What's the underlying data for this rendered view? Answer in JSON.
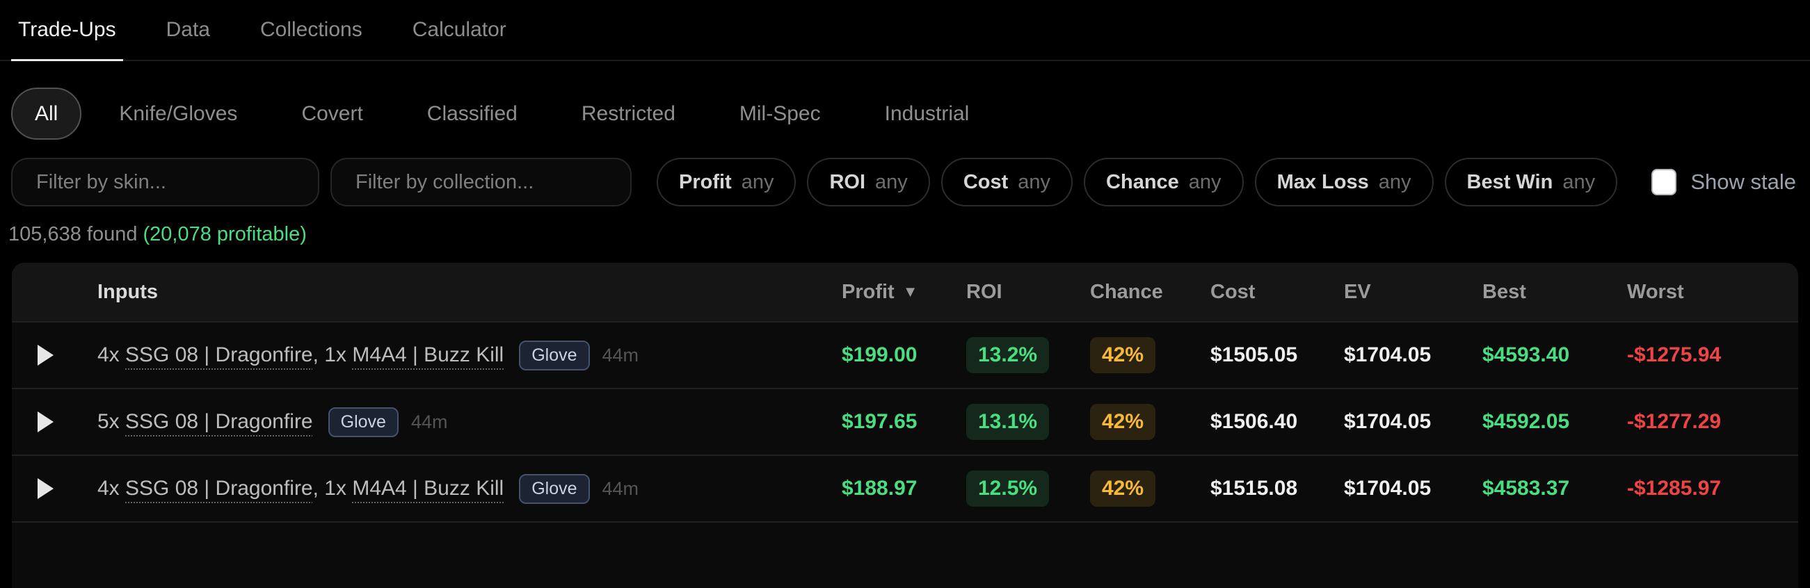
{
  "nav": {
    "tabs": [
      {
        "label": "Trade-Ups",
        "active": true
      },
      {
        "label": "Data",
        "active": false
      },
      {
        "label": "Collections",
        "active": false
      },
      {
        "label": "Calculator",
        "active": false
      }
    ]
  },
  "rarity_filters": {
    "active": "All",
    "options": [
      {
        "label": "All"
      },
      {
        "label": "Knife/Gloves"
      },
      {
        "label": "Covert"
      },
      {
        "label": "Classified"
      },
      {
        "label": "Restricted"
      },
      {
        "label": "Mil-Spec"
      },
      {
        "label": "Industrial"
      }
    ]
  },
  "filters": {
    "skin_placeholder": "Filter by skin...",
    "collection_placeholder": "Filter by collection...",
    "pills": [
      {
        "label": "Profit",
        "value": "any"
      },
      {
        "label": "ROI",
        "value": "any"
      },
      {
        "label": "Cost",
        "value": "any"
      },
      {
        "label": "Chance",
        "value": "any"
      },
      {
        "label": "Max Loss",
        "value": "any"
      },
      {
        "label": "Best Win",
        "value": "any"
      }
    ],
    "show_stale_label": "Show stale",
    "show_stale_checked": false
  },
  "results_summary": {
    "found_text": "105,638 found ",
    "profitable_text": "(20,078 profitable)"
  },
  "table": {
    "headers": {
      "inputs": "Inputs",
      "profit": "Profit",
      "sort_arrow": "▼",
      "roi": "ROI",
      "chance": "Chance",
      "cost": "Cost",
      "ev": "EV",
      "best": "Best",
      "worst": "Worst"
    },
    "rows": [
      {
        "inputs": [
          {
            "t": "4x ",
            "u": false
          },
          {
            "t": "SSG 08 | Dragonfire",
            "u": true
          },
          {
            "t": ", 1x ",
            "u": false
          },
          {
            "t": "M4A4 | Buzz Kill",
            "u": true
          }
        ],
        "badge": "Glove",
        "age": "44m",
        "profit": "$199.00",
        "roi": "13.2%",
        "chance": "42%",
        "cost": "$1505.05",
        "ev": "$1704.05",
        "best": "$4593.40",
        "worst": "-$1275.94"
      },
      {
        "inputs": [
          {
            "t": "5x ",
            "u": false
          },
          {
            "t": "SSG 08 | Dragonfire",
            "u": true
          }
        ],
        "badge": "Glove",
        "age": "44m",
        "profit": "$197.65",
        "roi": "13.1%",
        "chance": "42%",
        "cost": "$1506.40",
        "ev": "$1704.05",
        "best": "$4592.05",
        "worst": "-$1277.29"
      },
      {
        "inputs": [
          {
            "t": "4x ",
            "u": false
          },
          {
            "t": "SSG 08 | Dragonfire",
            "u": true
          },
          {
            "t": ", 1x ",
            "u": false
          },
          {
            "t": "M4A4 | Buzz Kill",
            "u": true
          }
        ],
        "badge": "Glove",
        "age": "44m",
        "profit": "$188.97",
        "roi": "12.5%",
        "chance": "42%",
        "cost": "$1515.08",
        "ev": "$1704.05",
        "best": "$4583.37",
        "worst": "-$1285.97"
      }
    ]
  },
  "colors": {
    "profit_green": "#4ade80",
    "loss_red": "#ef4444",
    "chance_amber": "#f6b93b",
    "roi_badge_bg": "#14291b",
    "chance_badge_bg": "#2b2310",
    "glove_badge_bg": "#1c2433",
    "glove_badge_border": "#43526d"
  }
}
